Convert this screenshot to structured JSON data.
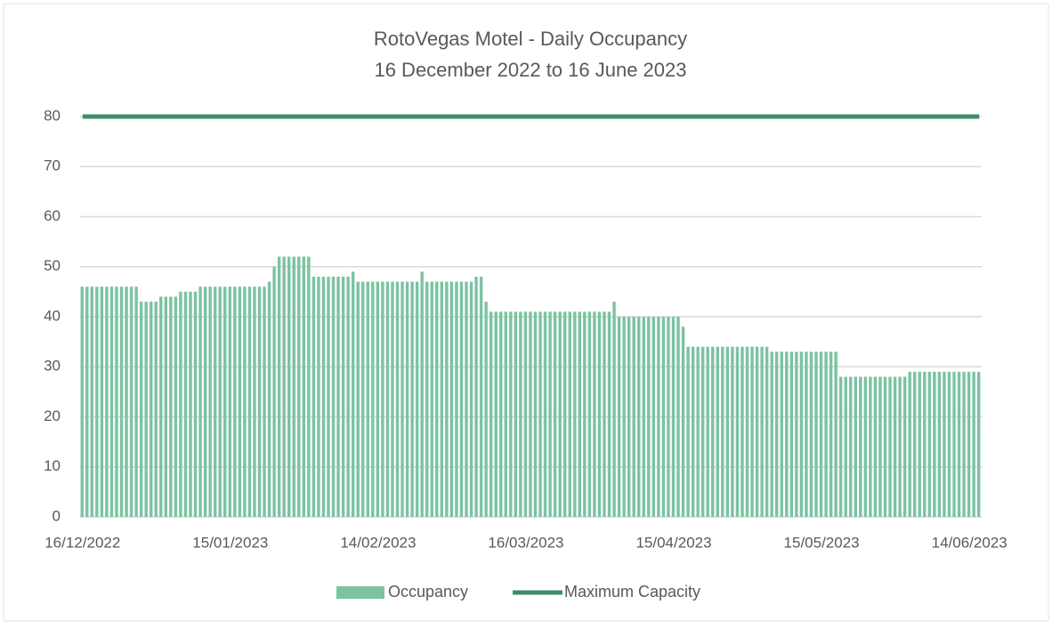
{
  "chart_data": {
    "type": "bar",
    "title": "RotoVegas Motel - Daily Occupancy",
    "subtitle": "16 December 2022 to 16 June 2023",
    "categories": [
      "16/12/2022",
      null,
      null,
      null,
      null,
      null,
      null,
      null,
      null,
      null,
      null,
      null,
      null,
      null,
      null,
      null,
      null,
      null,
      null,
      null,
      null,
      null,
      null,
      null,
      null,
      null,
      null,
      null,
      null,
      null,
      "15/01/2023",
      null,
      null,
      null,
      null,
      null,
      null,
      null,
      null,
      null,
      null,
      null,
      null,
      null,
      null,
      null,
      null,
      null,
      null,
      null,
      null,
      null,
      null,
      null,
      null,
      null,
      null,
      null,
      null,
      null,
      "14/02/2023",
      null,
      null,
      null,
      null,
      null,
      null,
      null,
      null,
      null,
      null,
      null,
      null,
      null,
      null,
      null,
      null,
      null,
      null,
      null,
      null,
      null,
      null,
      null,
      null,
      null,
      null,
      null,
      null,
      null,
      "16/03/2023",
      null,
      null,
      null,
      null,
      null,
      null,
      null,
      null,
      null,
      null,
      null,
      null,
      null,
      null,
      null,
      null,
      null,
      null,
      null,
      null,
      null,
      null,
      null,
      null,
      null,
      null,
      null,
      null,
      null,
      "15/04/2023",
      null,
      null,
      null,
      null,
      null,
      null,
      null,
      null,
      null,
      null,
      null,
      null,
      null,
      null,
      null,
      null,
      null,
      null,
      null,
      null,
      null,
      null,
      null,
      null,
      null,
      null,
      null,
      null,
      null,
      "15/05/2023",
      null,
      null,
      null,
      null,
      null,
      null,
      null,
      null,
      null,
      null,
      null,
      null,
      null,
      null,
      null,
      null,
      null,
      null,
      null,
      null,
      null,
      null,
      null,
      null,
      null,
      null,
      null,
      null,
      null,
      "14/06/2023",
      null,
      null
    ],
    "series": [
      {
        "name": "Occupancy",
        "type": "bar",
        "color": "#7cc3a2",
        "values": [
          46,
          46,
          46,
          46,
          46,
          46,
          46,
          46,
          46,
          46,
          46,
          46,
          43,
          43,
          43,
          43,
          44,
          44,
          44,
          44,
          45,
          45,
          45,
          45,
          46,
          46,
          46,
          46,
          46,
          46,
          46,
          46,
          46,
          46,
          46,
          46,
          46,
          46,
          47,
          50,
          52,
          52,
          52,
          52,
          52,
          52,
          52,
          48,
          48,
          48,
          48,
          48,
          48,
          48,
          48,
          49,
          47,
          47,
          47,
          47,
          47,
          47,
          47,
          47,
          47,
          47,
          47,
          47,
          47,
          49,
          47,
          47,
          47,
          47,
          47,
          47,
          47,
          47,
          47,
          47,
          48,
          48,
          43,
          41,
          41,
          41,
          41,
          41,
          41,
          41,
          41,
          41,
          41,
          41,
          41,
          41,
          41,
          41,
          41,
          41,
          41,
          41,
          41,
          41,
          41,
          41,
          41,
          41,
          43,
          40,
          40,
          40,
          40,
          40,
          40,
          40,
          40,
          40,
          40,
          40,
          40,
          40,
          38,
          34,
          34,
          34,
          34,
          34,
          34,
          34,
          34,
          34,
          34,
          34,
          34,
          34,
          34,
          34,
          34,
          34,
          33,
          33,
          33,
          33,
          33,
          33,
          33,
          33,
          33,
          33,
          33,
          33,
          33,
          33,
          28,
          28,
          28,
          28,
          28,
          28,
          28,
          28,
          28,
          28,
          28,
          28,
          28,
          28,
          29,
          29,
          29,
          29,
          29,
          29,
          29,
          29,
          29,
          29,
          29,
          29,
          29,
          29,
          29
        ]
      },
      {
        "name": "Maximum Capacity",
        "type": "line",
        "color": "#3f8c68",
        "values": [
          80,
          80,
          80,
          80,
          80,
          80,
          80,
          80,
          80,
          80,
          80,
          80,
          80,
          80,
          80,
          80,
          80,
          80,
          80,
          80,
          80,
          80,
          80,
          80,
          80,
          80,
          80,
          80,
          80,
          80,
          80,
          80,
          80,
          80,
          80,
          80,
          80,
          80,
          80,
          80,
          80,
          80,
          80,
          80,
          80,
          80,
          80,
          80,
          80,
          80,
          80,
          80,
          80,
          80,
          80,
          80,
          80,
          80,
          80,
          80,
          80,
          80,
          80,
          80,
          80,
          80,
          80,
          80,
          80,
          80,
          80,
          80,
          80,
          80,
          80,
          80,
          80,
          80,
          80,
          80,
          80,
          80,
          80,
          80,
          80,
          80,
          80,
          80,
          80,
          80,
          80,
          80,
          80,
          80,
          80,
          80,
          80,
          80,
          80,
          80,
          80,
          80,
          80,
          80,
          80,
          80,
          80,
          80,
          80,
          80,
          80,
          80,
          80,
          80,
          80,
          80,
          80,
          80,
          80,
          80,
          80,
          80,
          80,
          80,
          80,
          80,
          80,
          80,
          80,
          80,
          80,
          80,
          80,
          80,
          80,
          80,
          80,
          80,
          80,
          80,
          80,
          80,
          80,
          80,
          80,
          80,
          80,
          80,
          80,
          80,
          80,
          80,
          80,
          80,
          80,
          80,
          80,
          80,
          80,
          80,
          80,
          80,
          80,
          80,
          80,
          80,
          80,
          80,
          80,
          80,
          80,
          80,
          80,
          80,
          80,
          80,
          80,
          80,
          80,
          80,
          80,
          80,
          80
        ]
      }
    ],
    "ylim": [
      0,
      80
    ],
    "yticks": [
      0,
      10,
      20,
      30,
      40,
      50,
      60,
      70,
      80
    ],
    "grid": true,
    "legend": "bottom"
  }
}
